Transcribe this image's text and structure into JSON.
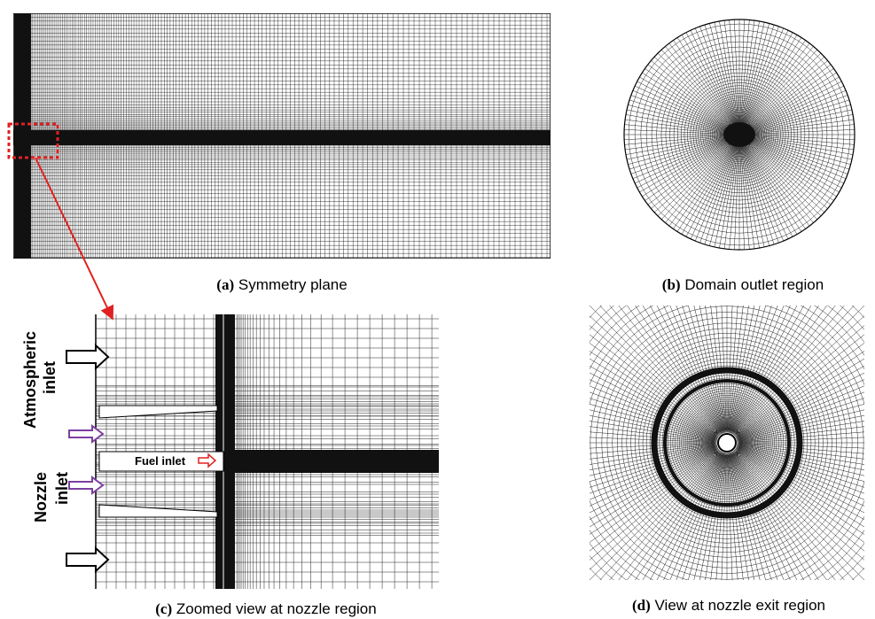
{
  "panels": [
    {
      "letter": "(a)",
      "caption": "Symmetry plane"
    },
    {
      "letter": "(b)",
      "caption": "Domain outlet region"
    },
    {
      "letter": "(c)",
      "caption": "Zoomed view at nozzle region"
    },
    {
      "letter": "(d)",
      "caption": "View at nozzle exit region"
    }
  ],
  "labels": {
    "atmospheric_inlet": [
      "Atmospheric",
      "inlet"
    ],
    "nozzle_inlet": [
      "Nozzle",
      "inlet"
    ],
    "fuel_inlet": "Fuel inlet"
  }
}
